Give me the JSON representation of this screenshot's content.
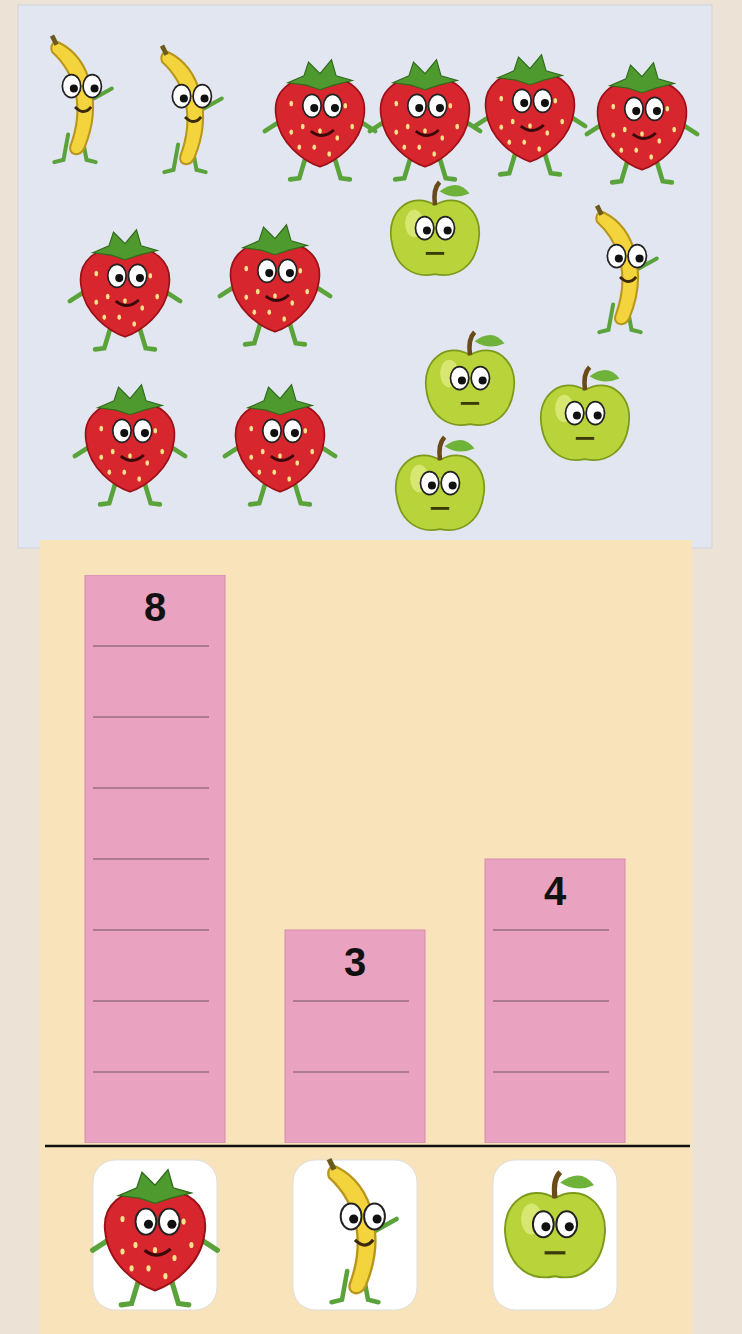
{
  "chart_data": {
    "type": "bar",
    "categories": [
      null,
      null,
      null
    ],
    "values": [
      8,
      3,
      4
    ],
    "color": "#e9a2c0",
    "ylim": [
      0,
      8
    ],
    "yticks": [
      0,
      1,
      2,
      3,
      4,
      5,
      6,
      7,
      8
    ],
    "grid": true,
    "data_labels": true,
    "tick_labels": false
  }
}
